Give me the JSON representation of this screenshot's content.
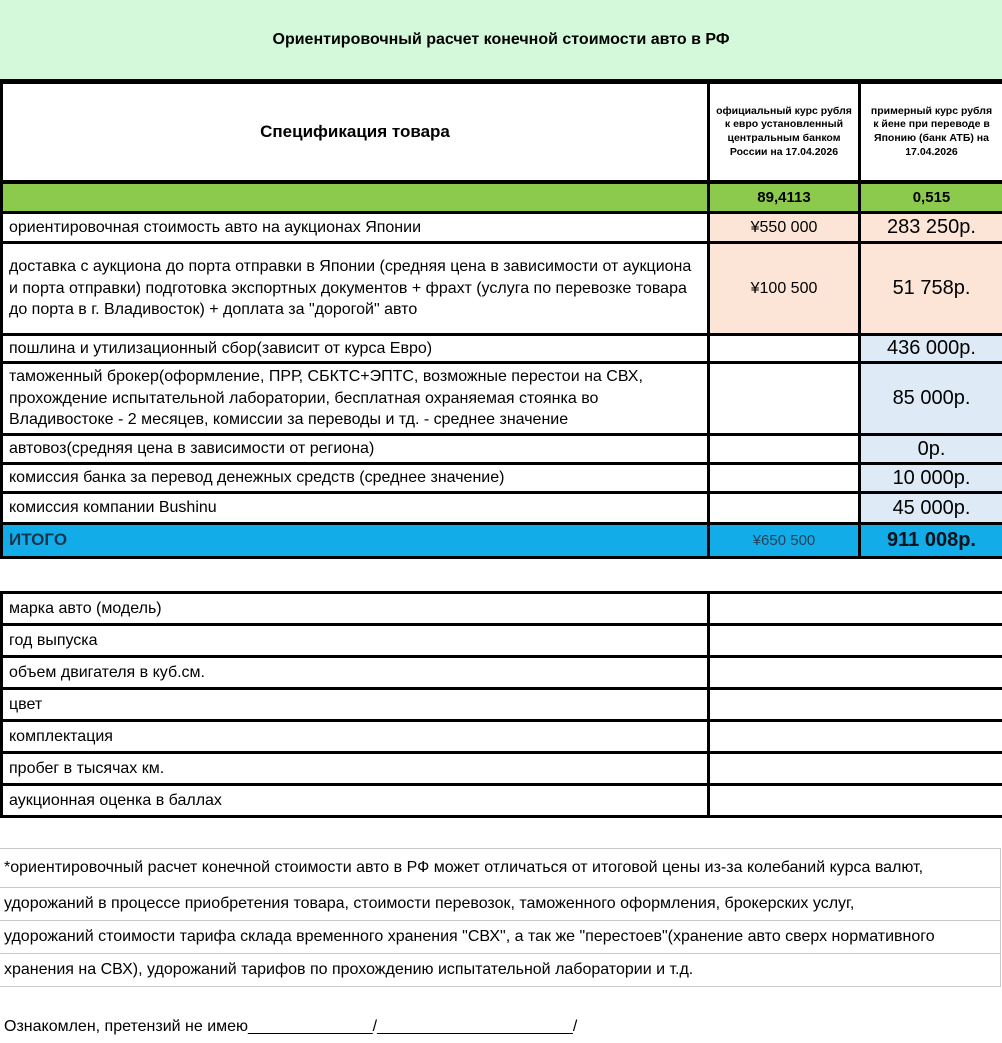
{
  "title": "Ориентировочный расчет конечной стоимости авто в РФ",
  "main_table": {
    "columns": {
      "spec": "Спецификация товара",
      "eur_rate": "официальный курс рубля к евро установленный центральным банком России на 17.04.2026",
      "jpy_rate": "примерный курс рубля к йене при переводе в Японию (банк АТБ) на 17.04.2026"
    },
    "rates": {
      "eur": "89,4113",
      "jpy": "0,515"
    },
    "rows": [
      {
        "label": "ориентировочная стоимость авто на аукционах Японии",
        "yen": "¥550 000",
        "rub": "283 250р."
      },
      {
        "label": "доставка с аукциона до порта отправки в Японии (средняя цена в зависимости от аукциона и порта отправки) подготовка экспортных документов + фрахт (услуга по перевозке товара до порта в г. Владивосток) + доплата за \"дорогой\" авто",
        "yen": "¥100 500",
        "rub": "51 758р."
      },
      {
        "label": "пошлина и утилизационный сбор(зависит от курса Евро)",
        "yen": "",
        "rub": "436 000р."
      },
      {
        "label": "таможенный брокер(оформление, ПРР, СБКТС+ЭПТС, возможные перестои на СВХ, прохождение испытательной лаборатории, бесплатная охраняемая стоянка во Владивостоке - 2 месяцев, комиссии за переводы и тд. -  среднее значение",
        "yen": "",
        "rub": "85 000р."
      },
      {
        "label": "автовоз(средняя цена в зависимости от региона)",
        "yen": "",
        "rub": "0р."
      },
      {
        "label": "комиссия банка за перевод денежных средств (среднее значение)",
        "yen": "",
        "rub": "10 000р."
      },
      {
        "label": "комиссия компании Bushinu",
        "yen": "",
        "rub": "45 000р."
      }
    ],
    "total": {
      "label": "ИТОГО",
      "yen": "¥650 500",
      "rub": "911 008р."
    }
  },
  "vehicle_table": {
    "rows": [
      {
        "label": "марка авто (модель)",
        "value": ""
      },
      {
        "label": "год выпуска",
        "value": ""
      },
      {
        "label": "объем двигателя в куб.см.",
        "value": ""
      },
      {
        "label": "цвет",
        "value": ""
      },
      {
        "label": "комплектация",
        "value": ""
      },
      {
        "label": "пробег в тысячах км.",
        "value": ""
      },
      {
        "label": "аукционная оценка в баллах",
        "value": ""
      }
    ]
  },
  "disclaimer_lines": [
    "*ориентировочный расчет конечной стоимости авто в РФ может отличаться от итоговой цены из-за колебаний курса валют,",
    "удорожаний в процессе приобретения товара, стоимости перевозок, таможенного оформления, брокерских услуг,",
    "удорожаний стоимости тарифа склада временного хранения \"СВХ\", а так же \"перестоев\"(хранение авто сверх нормативного",
    "хранения на СВХ), удорожаний тарифов по прохождению испытательной лаборатории и т.д."
  ],
  "acknowledgement": "Ознакомлен, претензий не имею______________/______________________/",
  "colors": {
    "title_band_green": "#d3f8da",
    "rates_row_green": "#8cca4d",
    "yen_cell_peach": "#fce5d6",
    "rub_cell_blue": "#deebf7",
    "total_row_blue": "#12ade8",
    "grid_black": "#000000",
    "grid_gray": "#c9c9c9"
  }
}
